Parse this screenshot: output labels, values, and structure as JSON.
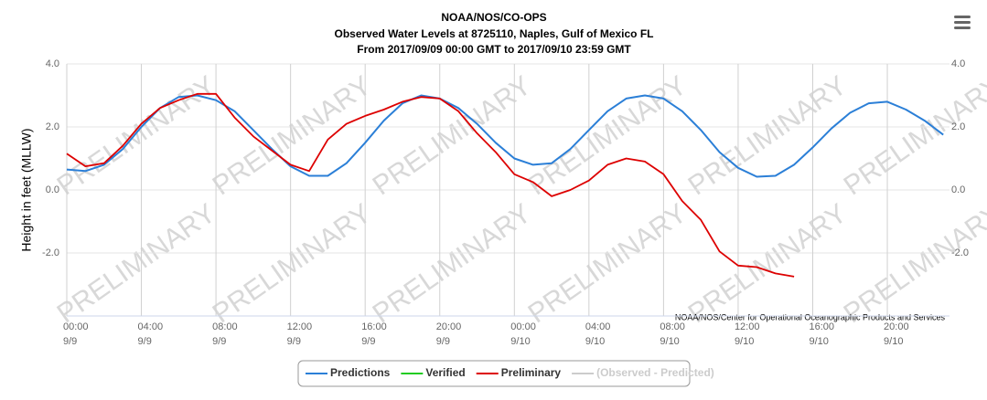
{
  "chart_data": {
    "type": "line",
    "title": "NOAA/NOS/CO-OPS",
    "subtitle": "Observed Water Levels at 8725110, Naples, Gulf of Mexico FL",
    "subtitle2": "From 2017/09/09 00:00 GMT to 2017/09/10 23:59 GMT",
    "y_label": "Height in feet (MLLW)",
    "credit": "NOAA/NOS/Center for Operational Oceanographic Products and Services",
    "watermark": "PRELIMINARY",
    "grid": true,
    "legend": "bottom",
    "x": [
      "2017-09-09T00:00",
      "2017-09-09T01:00",
      "2017-09-09T02:00",
      "2017-09-09T03:00",
      "2017-09-09T04:00",
      "2017-09-09T05:00",
      "2017-09-09T06:00",
      "2017-09-09T07:00",
      "2017-09-09T08:00",
      "2017-09-09T09:00",
      "2017-09-09T10:00",
      "2017-09-09T11:00",
      "2017-09-09T12:00",
      "2017-09-09T13:00",
      "2017-09-09T14:00",
      "2017-09-09T15:00",
      "2017-09-09T16:00",
      "2017-09-09T17:00",
      "2017-09-09T18:00",
      "2017-09-09T19:00",
      "2017-09-09T20:00",
      "2017-09-09T21:00",
      "2017-09-09T22:00",
      "2017-09-09T23:00",
      "2017-09-10T00:00",
      "2017-09-10T01:00",
      "2017-09-10T02:00",
      "2017-09-10T03:00",
      "2017-09-10T04:00",
      "2017-09-10T05:00",
      "2017-09-10T06:00",
      "2017-09-10T07:00",
      "2017-09-10T08:00",
      "2017-09-10T09:00",
      "2017-09-10T10:00",
      "2017-09-10T11:00",
      "2017-09-10T12:00",
      "2017-09-10T13:00",
      "2017-09-10T14:00",
      "2017-09-10T15:00",
      "2017-09-10T16:00",
      "2017-09-10T17:00",
      "2017-09-10T18:00",
      "2017-09-10T19:00",
      "2017-09-10T20:00",
      "2017-09-10T21:00",
      "2017-09-10T22:00",
      "2017-09-10T23:00"
    ],
    "xlim": [
      "2017-09-09T00:00",
      "2017-09-10T23:20"
    ],
    "xticks": [
      {
        "value": "2017-09-09T00:00",
        "label": "00:00\n9/9"
      },
      {
        "value": "2017-09-09T04:00",
        "label": "04:00\n9/9"
      },
      {
        "value": "2017-09-09T08:00",
        "label": "08:00\n9/9"
      },
      {
        "value": "2017-09-09T12:00",
        "label": "12:00\n9/9"
      },
      {
        "value": "2017-09-09T16:00",
        "label": "16:00\n9/9"
      },
      {
        "value": "2017-09-09T20:00",
        "label": "20:00\n9/9"
      },
      {
        "value": "2017-09-10T00:00",
        "label": "00:00\n9/10"
      },
      {
        "value": "2017-09-10T04:00",
        "label": "04:00\n9/10"
      },
      {
        "value": "2017-09-10T08:00",
        "label": "08:00\n9/10"
      },
      {
        "value": "2017-09-10T12:00",
        "label": "12:00\n9/10"
      },
      {
        "value": "2017-09-10T16:00",
        "label": "16:00\n9/10"
      },
      {
        "value": "2017-09-10T20:00",
        "label": "20:00\n9/10"
      }
    ],
    "ylim": [
      -4,
      4
    ],
    "yticks": [
      {
        "value": 4,
        "label": "4.0"
      },
      {
        "value": 2,
        "label": "2.0"
      },
      {
        "value": 0,
        "label": "0.0"
      },
      {
        "value": -2,
        "label": "-2.0"
      }
    ],
    "y2lim": [
      -4,
      4
    ],
    "y2ticks": [
      {
        "value": 4,
        "label": "4.0"
      },
      {
        "value": 2,
        "label": "2.0"
      },
      {
        "value": 0,
        "label": "0.0"
      },
      {
        "value": -2,
        "label": "-2.0"
      }
    ],
    "series": [
      {
        "name": "Predictions",
        "color": "#2b7fd7",
        "visible": true,
        "values": [
          0.65,
          0.6,
          0.8,
          1.3,
          2.0,
          2.6,
          2.95,
          3.0,
          2.85,
          2.5,
          1.9,
          1.3,
          0.75,
          0.45,
          0.45,
          0.85,
          1.5,
          2.2,
          2.75,
          3.0,
          2.9,
          2.6,
          2.1,
          1.5,
          1.0,
          0.8,
          0.85,
          1.3,
          1.9,
          2.5,
          2.9,
          3.0,
          2.9,
          2.5,
          1.9,
          1.2,
          0.7,
          0.42,
          0.45,
          0.8,
          1.35,
          1.95,
          2.45,
          2.75,
          2.8,
          2.55,
          2.2,
          1.75
        ]
      },
      {
        "name": "Verified",
        "color": "#22cc22",
        "visible": true,
        "values": [
          null,
          null,
          null,
          null,
          null,
          null,
          null,
          null,
          null,
          null,
          null,
          null,
          null,
          null,
          null,
          null,
          null,
          null,
          null,
          null,
          null,
          null,
          null,
          null,
          null,
          null,
          null,
          null,
          null,
          null,
          null,
          null,
          null,
          null,
          null,
          null,
          null,
          null,
          null,
          null,
          null,
          null,
          null,
          null,
          null,
          null,
          null,
          null
        ]
      },
      {
        "name": "Preliminary",
        "color": "#dd0000",
        "visible": true,
        "values": [
          1.15,
          0.75,
          0.85,
          1.4,
          2.1,
          2.6,
          2.85,
          3.05,
          3.05,
          2.3,
          1.7,
          1.25,
          0.8,
          0.6,
          1.6,
          2.1,
          2.35,
          2.55,
          2.8,
          2.95,
          2.9,
          2.5,
          1.8,
          1.2,
          0.5,
          0.25,
          -0.2,
          0.0,
          0.3,
          0.8,
          1.0,
          0.9,
          0.5,
          -0.35,
          -0.95,
          -1.95,
          -2.4,
          -2.45,
          -2.65,
          -2.75,
          null,
          null,
          null,
          null,
          null,
          null,
          null,
          null
        ]
      },
      {
        "name": "(Observed - Predicted)",
        "color": "#cccccc",
        "visible": false,
        "values": [
          null,
          null,
          null,
          null,
          null,
          null,
          null,
          null,
          null,
          null,
          null,
          null,
          null,
          null,
          null,
          null,
          null,
          null,
          null,
          null,
          null,
          null,
          null,
          null,
          null,
          null,
          null,
          null,
          null,
          null,
          null,
          null,
          null,
          null,
          null,
          null,
          null,
          null,
          null,
          null,
          null,
          null,
          null,
          null,
          null,
          null,
          null,
          null
        ]
      }
    ]
  }
}
